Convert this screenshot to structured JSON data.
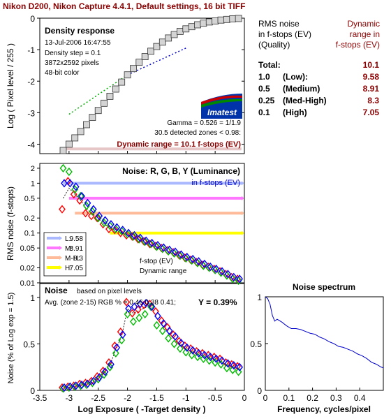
{
  "figure_title": "Nikon D200, Nikon Capture 4.4.1, Default settings, 16 bit TIFF",
  "colors": {
    "title": "#8b0000",
    "dynamic_range_text": "#8b0000",
    "fstop_text": "#0000cc",
    "L": "#aab8ff",
    "M": "#ff77ff",
    "MH": "#ffbb99",
    "H": "#ffff00",
    "R": "#ff0000",
    "G": "#00bb00",
    "B": "#0000ff",
    "Y": "#222222",
    "logo_blue": "#0033aa",
    "logo_red": "#cc0000",
    "logo_green": "#008800"
  },
  "density_panel": {
    "title": "Density response",
    "info": [
      "13-Jul-2006 16:47:55",
      "Density step = 0.1",
      "3872x2592 pixels",
      "48-bit color"
    ],
    "gamma": "Gamma = 0.526 = 1/1.9",
    "zones": "30.5 detected zones < 0.98:",
    "dynamic_range": "Dynamic range = 10.1 f-stops (EV)",
    "logo": "Imatest",
    "ylabel": "Log ( Pixel level / 255 )"
  },
  "rms_table": {
    "header_left": [
      "RMS noise",
      "in f-stops (EV)",
      "(Quality)"
    ],
    "header_right": [
      "Dynamic",
      "range in",
      "f-stops (EV)"
    ],
    "rows": [
      {
        "q": "Total:",
        "label": "",
        "value": "10.1"
      },
      {
        "q": "1.0",
        "label": "(Low):",
        "value": "9.58"
      },
      {
        "q": "0.5",
        "label": "(Medium)",
        "value": "8.91"
      },
      {
        "q": "0.25",
        "label": "(Med-High)",
        "value": "8.3"
      },
      {
        "q": "0.1",
        "label": "(High)",
        "value": "7.05"
      }
    ]
  },
  "noise_panel": {
    "title": "Noise: R, G, B, Y (Luminance)",
    "subtitle": "in f-stops (EV)",
    "ylabel": "RMS noise (f-stops)",
    "legend": [
      {
        "key": "L:",
        "value": "9.58"
      },
      {
        "key": "M:",
        "value": "8.91"
      },
      {
        "key": "M-H:",
        "value": "8.3"
      },
      {
        "key": "H:",
        "value": "7.05"
      }
    ],
    "legend_note": [
      "f-stop (EV)",
      "Dynamic range"
    ]
  },
  "pixel_noise_panel": {
    "title": "Noise",
    "note": "based on pixel levels",
    "avg": "Avg. (zone 2-15) RGB % = 0.46  0.38  0.41;",
    "y_value": "Y = 0.39%",
    "ylabel": "Noise (% of Log exp = 1.5)",
    "xlabel": "Log Exposure ( -Target density )"
  },
  "spectrum_panel": {
    "title": "Noise spectrum",
    "xlabel": "Frequency, cycles/pixel"
  },
  "chart_data": [
    {
      "type": "scatter",
      "name": "density response",
      "xlim": [
        -3.5,
        0
      ],
      "ylim": [
        -4.3,
        0
      ],
      "yticks": [
        0,
        -1,
        -2,
        -3,
        -4
      ],
      "x": [
        -3.1,
        -3.0,
        -2.9,
        -2.8,
        -2.7,
        -2.6,
        -2.5,
        -2.4,
        -2.3,
        -2.2,
        -2.1,
        -2.0,
        -1.9,
        -1.8,
        -1.7,
        -1.6,
        -1.5,
        -1.4,
        -1.3,
        -1.2,
        -1.1,
        -1.0,
        -0.9,
        -0.8,
        -0.7,
        -0.6,
        -0.5,
        -0.4,
        -0.3,
        -0.2,
        -0.1
      ],
      "y": [
        -4.2,
        -4.0,
        -3.8,
        -3.6,
        -3.38,
        -3.15,
        -2.93,
        -2.7,
        -2.48,
        -2.25,
        -2.03,
        -1.8,
        -1.6,
        -1.4,
        -1.22,
        -1.05,
        -0.9,
        -0.76,
        -0.63,
        -0.52,
        -0.42,
        -0.34,
        -0.27,
        -0.21,
        -0.16,
        -0.12,
        -0.09,
        -0.06,
        -0.04,
        -0.02,
        -0.01
      ],
      "fit_green": {
        "x": [
          -3.0,
          -2.0
        ],
        "y": [
          -3.05,
          -1.8
        ]
      },
      "fit_blue": {
        "x": [
          -2.0,
          -1.0
        ],
        "y": [
          -1.8,
          -0.95
        ]
      },
      "dynamic_range_bar": {
        "x": [
          -3.1,
          -0.05
        ],
        "y": -4.15
      }
    },
    {
      "type": "scatter",
      "name": "rms noise f-stops",
      "xlim": [
        -3.5,
        0
      ],
      "ylim_log": [
        0.01,
        2.5
      ],
      "yticks": [
        2,
        1,
        0.5,
        0.2,
        0.1,
        0.05,
        0.02,
        0.01
      ],
      "ytick_labels": [
        "2",
        "1",
        "0.5",
        "0.2",
        "0.1",
        "0.05",
        "0.02",
        "0.01"
      ],
      "levels": [
        {
          "key": "L",
          "y": 1.0,
          "x_start": -3.1
        },
        {
          "key": "M",
          "y": 0.5,
          "x_start": -3.0
        },
        {
          "key": "MH",
          "y": 0.25,
          "x_start": -2.9
        },
        {
          "key": "H",
          "y": 0.1,
          "x_start": -2.3
        }
      ],
      "x": [
        -3.1,
        -3.0,
        -2.9,
        -2.8,
        -2.7,
        -2.6,
        -2.5,
        -2.4,
        -2.3,
        -2.2,
        -2.1,
        -2.0,
        -1.9,
        -1.8,
        -1.7,
        -1.6,
        -1.5,
        -1.4,
        -1.3,
        -1.2,
        -1.1,
        -1.0,
        -0.9,
        -0.8,
        -0.7,
        -0.6,
        -0.5,
        -0.4,
        -0.3,
        -0.2,
        -0.1
      ],
      "series": [
        {
          "name": "R",
          "values": [
            0.3,
            1.1,
            0.6,
            0.45,
            0.25,
            0.22,
            0.2,
            0.15,
            0.12,
            0.115,
            0.1,
            0.09,
            0.085,
            0.075,
            0.068,
            0.06,
            0.055,
            0.05,
            0.045,
            0.041,
            0.036,
            0.032,
            0.029,
            0.026,
            0.023,
            0.021,
            0.019,
            0.017,
            0.015,
            0.013,
            0.012
          ]
        },
        {
          "name": "G",
          "values": [
            2.0,
            1.7,
            0.75,
            0.55,
            0.35,
            0.27,
            0.2,
            0.16,
            0.14,
            0.12,
            0.11,
            0.095,
            0.085,
            0.075,
            0.067,
            0.06,
            0.053,
            0.048,
            0.043,
            0.039,
            0.035,
            0.031,
            0.028,
            0.025,
            0.022,
            0.02,
            0.018,
            0.016,
            0.014,
            0.012,
            0.011
          ]
        },
        {
          "name": "B",
          "values": [
            1.0,
            1.0,
            0.85,
            0.55,
            0.4,
            0.3,
            0.22,
            0.18,
            0.15,
            0.13,
            0.115,
            0.1,
            0.09,
            0.08,
            0.07,
            0.063,
            0.057,
            0.051,
            0.046,
            0.042,
            0.037,
            0.033,
            0.03,
            0.027,
            0.024,
            0.021,
            0.019,
            0.017,
            0.015,
            0.013,
            0.012
          ]
        },
        {
          "name": "Y",
          "values": [
            0.5,
            0.8,
            0.6,
            0.45,
            0.3,
            0.25,
            0.2,
            0.15,
            0.13,
            0.115,
            0.1,
            0.09,
            0.082,
            0.073,
            0.065,
            0.058,
            0.052,
            0.047,
            0.042,
            0.038,
            0.034,
            0.031,
            0.028,
            0.025,
            0.022,
            0.02,
            0.018,
            0.016,
            0.014,
            0.012,
            0.011
          ]
        }
      ]
    },
    {
      "type": "scatter",
      "name": "pixel noise percent",
      "xlim": [
        -3.5,
        0
      ],
      "ylim": [
        0,
        1.15
      ],
      "xticks": [
        -3.5,
        -3,
        -2.5,
        -2,
        -1.5,
        -1,
        -0.5,
        0
      ],
      "yticks": [
        0,
        0.5,
        1
      ],
      "x": [
        -3.1,
        -3.0,
        -2.9,
        -2.8,
        -2.7,
        -2.6,
        -2.5,
        -2.4,
        -2.3,
        -2.2,
        -2.1,
        -2.0,
        -1.9,
        -1.8,
        -1.7,
        -1.6,
        -1.5,
        -1.4,
        -1.3,
        -1.2,
        -1.1,
        -1.0,
        -0.9,
        -0.8,
        -0.7,
        -0.6,
        -0.5,
        -0.4,
        -0.3,
        -0.2,
        -0.1
      ],
      "series": [
        {
          "name": "R",
          "values": [
            0.03,
            0.04,
            0.05,
            0.07,
            0.08,
            0.1,
            0.15,
            0.21,
            0.3,
            0.48,
            0.63,
            0.95,
            0.83,
            0.87,
            0.92,
            0.93,
            0.85,
            0.75,
            0.68,
            0.6,
            0.53,
            0.48,
            0.45,
            0.42,
            0.4,
            0.38,
            0.36,
            0.34,
            0.3,
            0.28,
            0.26
          ]
        },
        {
          "name": "G",
          "values": [
            0.02,
            0.03,
            0.04,
            0.05,
            0.06,
            0.08,
            0.12,
            0.17,
            0.25,
            0.4,
            0.54,
            0.82,
            0.74,
            0.78,
            0.82,
            0.9,
            0.7,
            0.64,
            0.56,
            0.5,
            0.45,
            0.41,
            0.38,
            0.36,
            0.34,
            0.32,
            0.3,
            0.28,
            0.24,
            0.22,
            0.2
          ]
        },
        {
          "name": "B",
          "values": [
            0.03,
            0.04,
            0.05,
            0.06,
            0.07,
            0.1,
            0.14,
            0.2,
            0.28,
            0.46,
            0.6,
            0.88,
            0.9,
            0.93,
            0.94,
            0.9,
            0.8,
            0.72,
            0.64,
            0.58,
            0.51,
            0.46,
            0.43,
            0.4,
            0.38,
            0.36,
            0.34,
            0.32,
            0.29,
            0.27,
            0.25
          ]
        },
        {
          "name": "Y",
          "values": [
            0.025,
            0.035,
            0.045,
            0.06,
            0.07,
            0.09,
            0.13,
            0.19,
            0.27,
            0.44,
            0.58,
            0.88,
            0.83,
            0.86,
            0.89,
            0.91,
            0.78,
            0.7,
            0.62,
            0.56,
            0.5,
            0.45,
            0.42,
            0.39,
            0.37,
            0.35,
            0.33,
            0.31,
            0.27,
            0.25,
            0.23
          ]
        }
      ]
    },
    {
      "type": "line",
      "name": "noise spectrum",
      "xlim": [
        0,
        0.5
      ],
      "ylim": [
        0,
        1
      ],
      "xticks": [
        0,
        0.1,
        0.2,
        0.3,
        0.4
      ],
      "yticks": [
        0,
        0.5,
        1
      ],
      "x": [
        0,
        0.01,
        0.02,
        0.03,
        0.04,
        0.05,
        0.07,
        0.09,
        0.11,
        0.13,
        0.15,
        0.17,
        0.19,
        0.21,
        0.23,
        0.25,
        0.27,
        0.29,
        0.31,
        0.33,
        0.35,
        0.37,
        0.39,
        0.41,
        0.43,
        0.45,
        0.47,
        0.49,
        0.5
      ],
      "y": [
        1.0,
        0.98,
        0.92,
        0.8,
        0.74,
        0.76,
        0.73,
        0.69,
        0.66,
        0.66,
        0.65,
        0.63,
        0.61,
        0.6,
        0.57,
        0.55,
        0.52,
        0.5,
        0.47,
        0.46,
        0.44,
        0.42,
        0.39,
        0.37,
        0.34,
        0.3,
        0.28,
        0.25,
        0.24
      ]
    }
  ]
}
